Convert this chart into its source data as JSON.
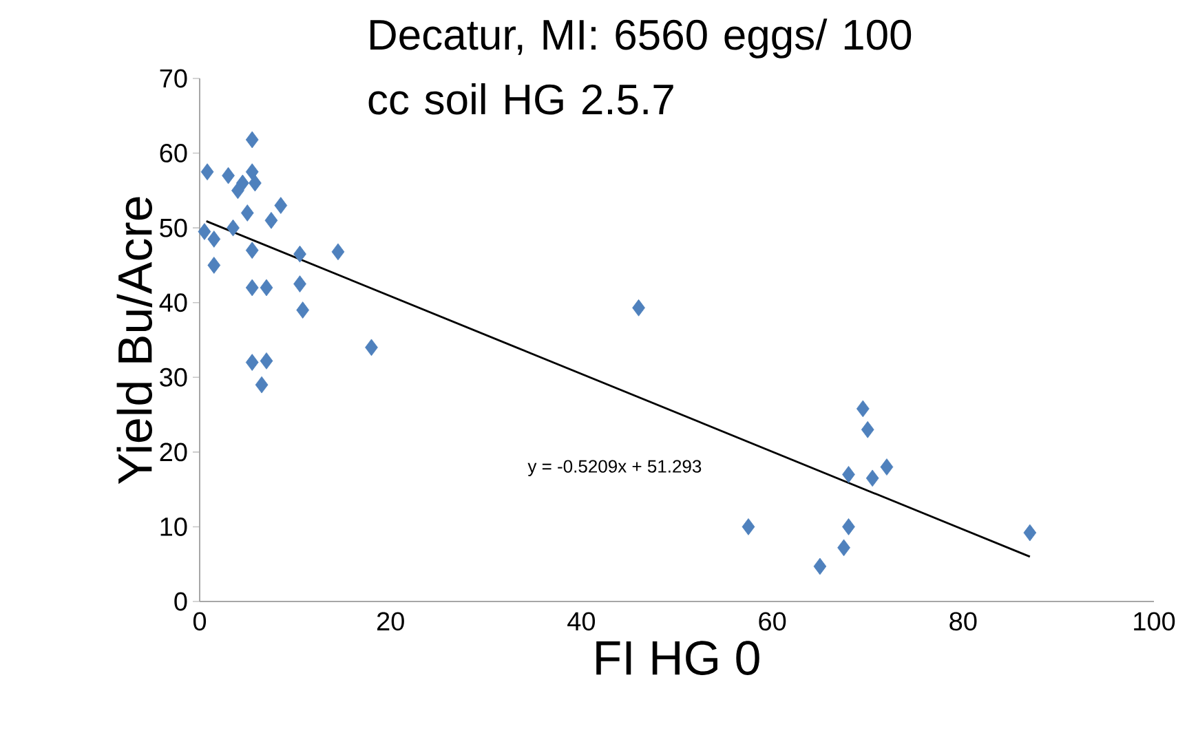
{
  "chart_data": {
    "type": "scatter",
    "title": "Decatur, MI: 6560 eggs/ 100 cc soil HG 2.5.7",
    "xlabel": "FI HG 0",
    "ylabel": "Yield Bu/Acre",
    "xlim": [
      0,
      100
    ],
    "xticks": [
      0,
      20,
      40,
      60,
      80,
      100
    ],
    "ylim": [
      0,
      70
    ],
    "yticks": [
      0,
      10,
      20,
      30,
      40,
      50,
      60,
      70
    ],
    "marker": "diamond",
    "series": [
      {
        "type": "scatter",
        "color": "#4f81bd",
        "x": [
          0.8,
          3,
          4.5,
          5.5,
          5.5,
          5.8,
          4,
          5,
          8.5,
          7.5,
          3.5,
          0.5,
          1.5,
          5.5,
          10.5,
          14.5,
          1.5,
          5.5,
          7,
          10.5,
          10.8,
          18,
          5.5,
          7,
          6.5,
          46,
          57.5,
          65,
          67.5,
          68,
          68,
          69.5,
          70,
          70.5,
          72,
          87
        ],
        "values": [
          57.5,
          57,
          56,
          61.8,
          57.5,
          56,
          55,
          52,
          53,
          51,
          50,
          49.5,
          48.5,
          47,
          46.5,
          46.8,
          45,
          42,
          42,
          42.5,
          39,
          34,
          32,
          32.2,
          29,
          39.3,
          10,
          4.7,
          7.2,
          10,
          17,
          25.8,
          23,
          16.5,
          18,
          9.2
        ]
      },
      {
        "type": "line",
        "color": "#000000",
        "marker": "none",
        "x": [
          0.7,
          87
        ],
        "values": [
          50.9,
          6.0
        ]
      }
    ],
    "annotations": [
      "y = -0.5209x + 51.293"
    ]
  }
}
